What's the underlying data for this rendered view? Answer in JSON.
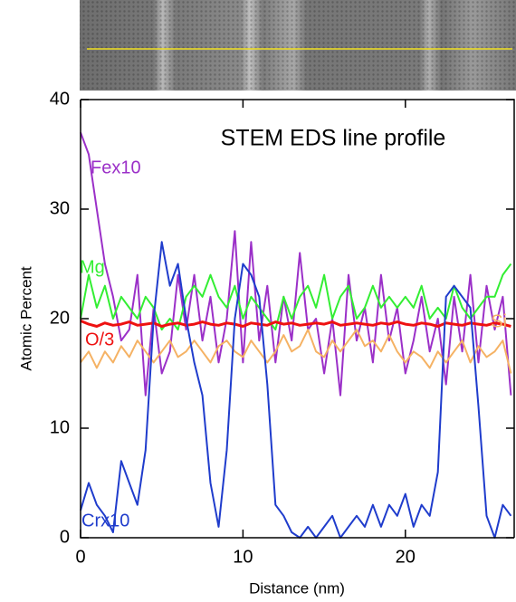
{
  "chart_data": {
    "type": "line",
    "title": "STEM EDS line profile",
    "x_label": "Distance (nm)",
    "y_label": "Atomic Percent",
    "x": [
      0,
      0.5,
      1,
      1.5,
      2,
      2.5,
      3,
      3.5,
      4,
      4.5,
      5,
      5.5,
      6,
      6.5,
      7,
      7.5,
      8,
      8.5,
      9,
      9.5,
      10,
      10.5,
      11,
      11.5,
      12,
      12.5,
      13,
      13.5,
      14,
      14.5,
      15,
      15.5,
      16,
      16.5,
      17,
      17.5,
      18,
      18.5,
      19,
      19.5,
      20,
      20.5,
      21,
      21.5,
      22,
      22.5,
      23,
      23.5,
      24,
      24.5,
      25,
      25.5,
      26,
      26.5
    ],
    "series": [
      {
        "name": "Fex10",
        "color": "#9b30c8",
        "values": [
          37,
          35,
          30,
          25,
          22,
          18,
          19,
          24,
          13,
          21,
          15,
          17,
          24,
          19,
          24,
          18,
          22,
          16,
          20,
          28,
          16,
          27,
          18,
          23,
          16,
          22,
          18,
          26,
          19,
          20,
          15,
          20,
          13,
          24,
          18,
          21,
          16,
          24,
          18,
          21,
          15,
          18,
          22,
          17,
          20,
          14,
          22,
          17,
          24,
          16,
          23,
          19,
          22,
          13
        ]
      },
      {
        "name": "Mg",
        "color": "#33ee33",
        "values": [
          20,
          24,
          21,
          23,
          20,
          22,
          21,
          20,
          22,
          21,
          19,
          20,
          19,
          22,
          23,
          22,
          24,
          22,
          21,
          23,
          20,
          22,
          21,
          20,
          19,
          22,
          20,
          22,
          23,
          21,
          24,
          20,
          22,
          23,
          20,
          21,
          23,
          21,
          22,
          21,
          22,
          21,
          23,
          20,
          21,
          20,
          23,
          21,
          20,
          21,
          22,
          22,
          24,
          25
        ]
      },
      {
        "name": "O/3",
        "color": "#ee1111",
        "values": [
          19.8,
          19.5,
          19.3,
          19.6,
          19.4,
          19.5,
          19.7,
          19.4,
          19.5,
          19.6,
          19.3,
          19.5,
          19.6,
          19.4,
          19.5,
          19.7,
          19.5,
          19.4,
          19.6,
          19.5,
          19.3,
          19.6,
          19.5,
          19.4,
          19.7,
          19.5,
          19.6,
          19.4,
          19.5,
          19.6,
          19.5,
          19.7,
          19.4,
          19.5,
          19.6,
          19.5,
          19.4,
          19.6,
          19.5,
          19.7,
          19.5,
          19.4,
          19.6,
          19.5,
          19.3,
          19.6,
          19.5,
          19.4,
          19.6,
          19.5,
          19.4,
          19.6,
          19.5,
          19.3
        ]
      },
      {
        "name": "Si",
        "color": "#f5b264",
        "values": [
          16,
          17,
          15.5,
          17,
          16,
          17.5,
          16.5,
          18,
          17,
          16,
          17,
          18,
          16.5,
          17,
          18,
          17,
          16,
          17.5,
          18,
          17,
          16.5,
          18,
          17,
          16,
          17,
          18.5,
          17,
          17.5,
          19,
          17,
          16.5,
          18,
          17,
          18,
          19,
          17.5,
          18,
          17,
          18.5,
          17,
          16,
          17,
          16.5,
          15.5,
          17,
          16,
          17,
          18,
          16,
          17.5,
          16.5,
          17,
          18,
          15
        ]
      },
      {
        "name": "Crx10",
        "color": "#1f3ccc",
        "values": [
          2.5,
          5,
          3,
          2,
          0.5,
          7,
          5,
          3,
          8,
          20,
          27,
          23,
          25,
          20,
          16,
          13,
          5,
          1,
          8,
          20,
          25,
          24,
          22,
          14,
          3,
          2,
          0.5,
          0,
          1,
          0,
          1,
          2,
          0,
          1,
          2,
          1,
          3,
          1,
          3,
          2,
          4,
          1,
          3,
          2,
          6,
          22,
          23,
          22,
          21,
          12,
          2,
          0,
          3,
          2
        ]
      }
    ],
    "xlim": [
      0,
      26.7
    ],
    "xticks": [
      0,
      10,
      20
    ],
    "ylim": [
      0,
      40
    ],
    "yticks": [
      0,
      10,
      20,
      30,
      40
    ]
  }
}
